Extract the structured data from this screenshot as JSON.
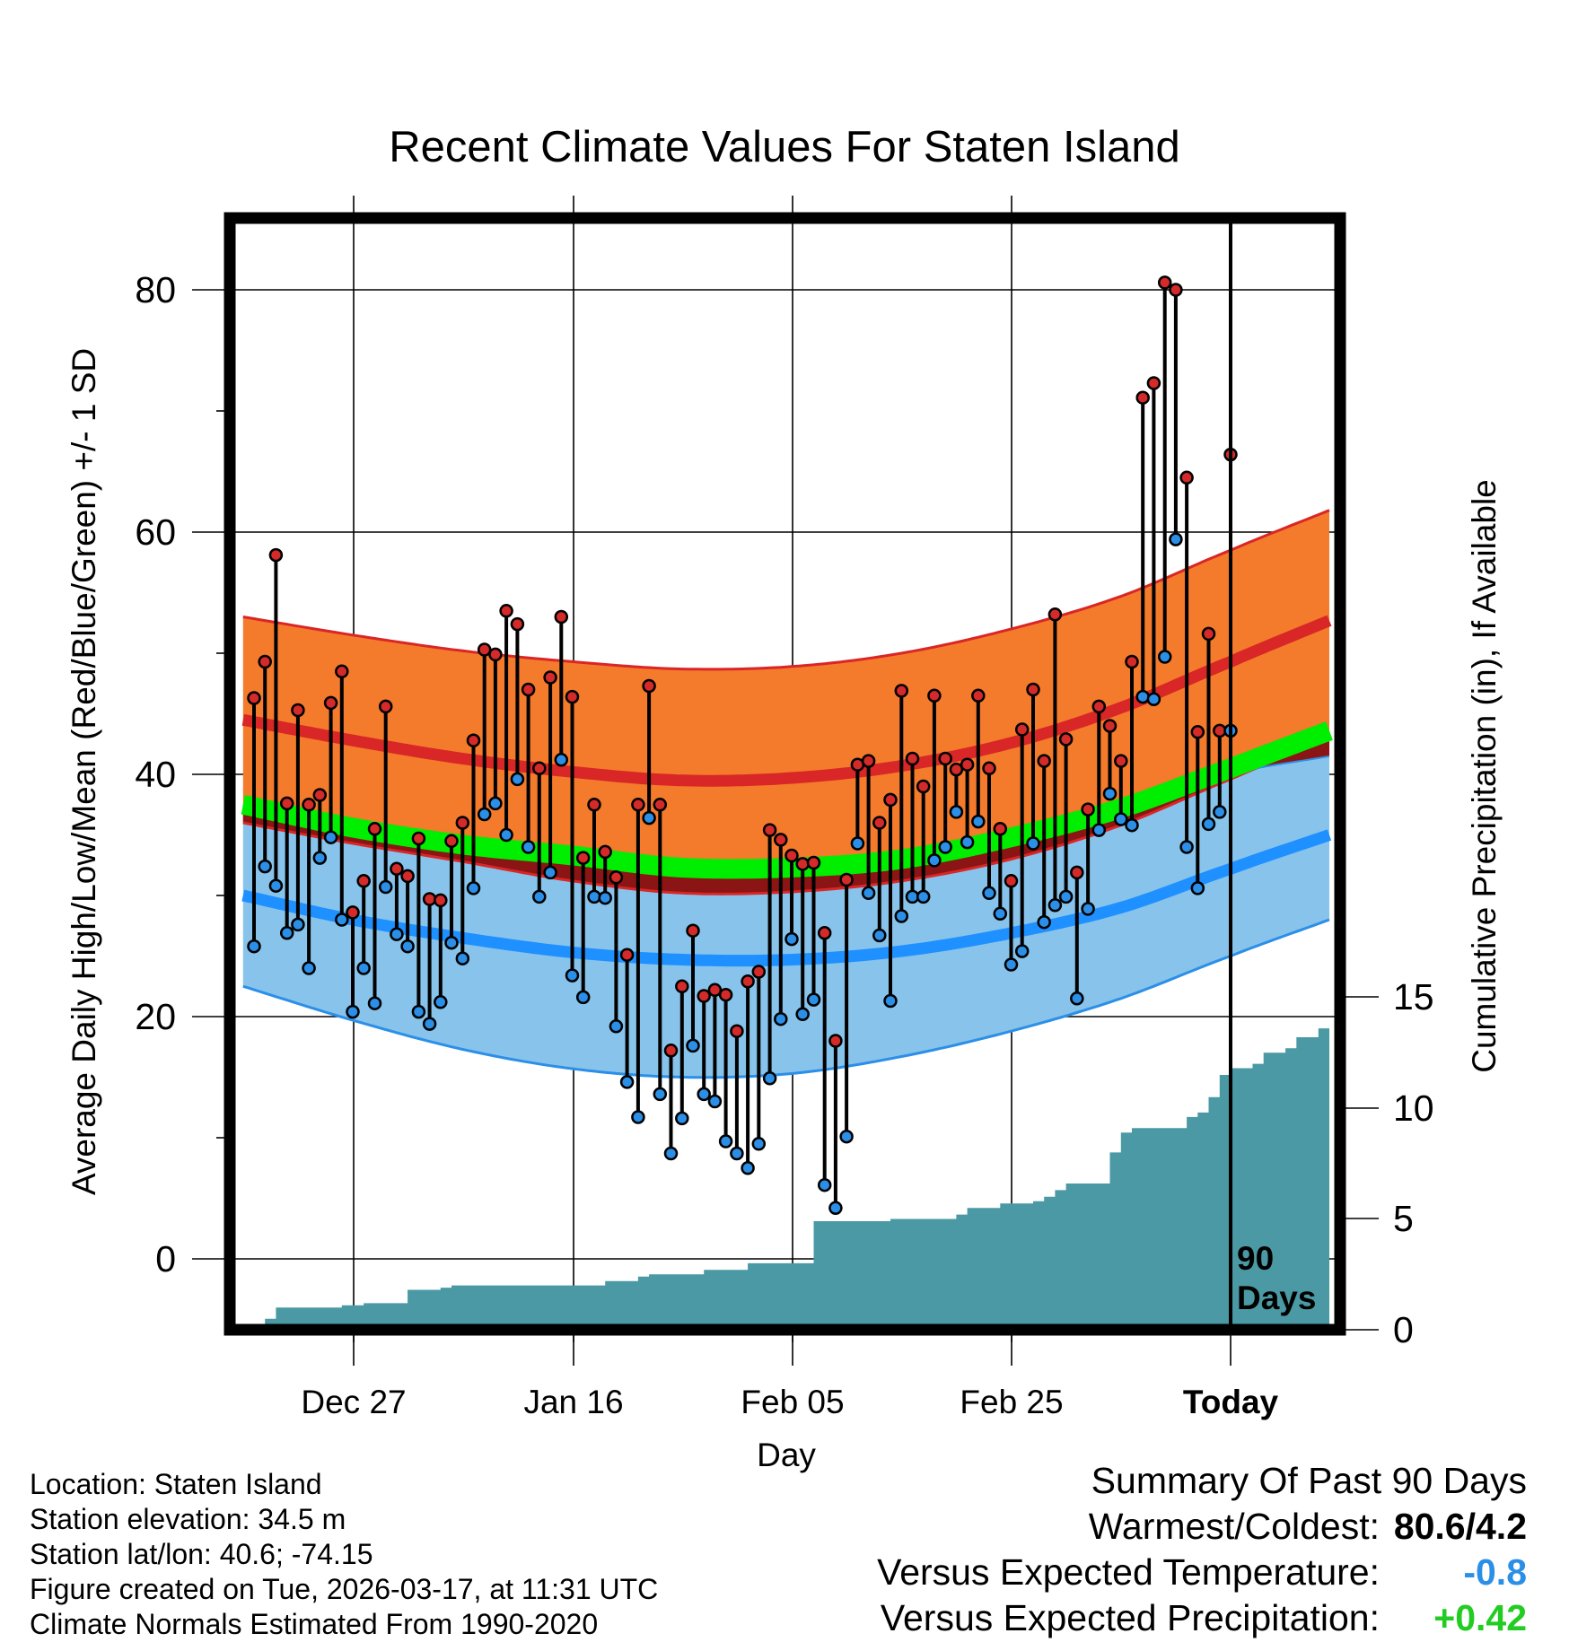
{
  "chart_data": {
    "type": "line",
    "title": "Recent Climate Values For Staten Island",
    "xlabel": "Day",
    "ylabel": "Average Daily High/Low/Mean (Red/Blue/Green) +/- 1 SD",
    "y2label": "Cumulative Precipitation (in), If Available",
    "ylim": [
      -5,
      86
    ],
    "y_ticks": [
      "0",
      "20",
      "40",
      "60",
      "80"
    ],
    "y2lim": [
      0,
      50
    ],
    "y2_ticks": [
      "0",
      "5",
      "10",
      "15"
    ],
    "x_range_days": [
      -90,
      9
    ],
    "x_ticks": [
      {
        "day": -70,
        "label": "Dec 27"
      },
      {
        "day": -50,
        "label": "Jan 16"
      },
      {
        "day": -30,
        "label": "Feb 05"
      },
      {
        "day": -10,
        "label": "Feb 25"
      },
      {
        "day": 0,
        "label": "Today"
      }
    ],
    "today_marker": {
      "day": 0,
      "label_line1": "90",
      "label_line2": "Days"
    },
    "normals": {
      "day": [
        -90,
        -80,
        -70,
        -60,
        -50,
        -40,
        -30,
        -20,
        -10,
        0,
        9
      ],
      "normal_high": [
        44.5,
        42.8,
        41.3,
        40.2,
        39.5,
        39.7,
        40.7,
        42.6,
        45.5,
        49.3,
        52.7
      ],
      "normal_high_upper": [
        53.0,
        51.5,
        50.2,
        49.3,
        48.7,
        48.9,
        50.0,
        52.0,
        54.7,
        58.5,
        61.8
      ],
      "normal_high_lower": [
        36.0,
        34.3,
        32.8,
        31.2,
        30.2,
        30.3,
        31.2,
        33.0,
        35.8,
        39.6,
        43.0
      ],
      "normal_mean": [
        37.5,
        35.6,
        34.2,
        33.3,
        32.3,
        32.3,
        33.0,
        34.8,
        37.2,
        40.5,
        43.6
      ],
      "normal_low": [
        30.0,
        28.0,
        26.5,
        25.3,
        24.7,
        24.7,
        25.4,
        26.9,
        29.0,
        32.2,
        35.0
      ],
      "normal_low_upper": [
        37.5,
        35.6,
        34.2,
        33.2,
        32.6,
        32.6,
        33.4,
        34.8,
        37.0,
        40.0,
        41.5
      ],
      "normal_low_lower": [
        22.5,
        19.7,
        17.3,
        15.7,
        15.0,
        15.3,
        16.7,
        18.8,
        21.5,
        25.0,
        28.0
      ]
    },
    "series": [
      {
        "name": "Daily High",
        "color": "#d42a2a",
        "values": [
          46.3,
          49.3,
          58.1,
          37.6,
          45.3,
          37.5,
          38.3,
          45.9,
          48.5,
          28.6,
          31.2,
          35.5,
          45.6,
          32.2,
          31.6,
          34.7,
          29.7,
          29.6,
          34.5,
          36.0,
          42.8,
          50.3,
          49.9,
          53.5,
          52.4,
          47.0,
          40.5,
          48.0,
          53.0,
          46.4,
          33.1,
          37.5,
          33.6,
          31.5,
          25.1,
          37.5,
          47.3,
          37.5,
          17.2,
          22.5,
          27.1,
          21.7,
          22.2,
          21.8,
          18.8,
          22.9,
          23.7,
          35.4,
          34.6,
          33.3,
          32.6,
          32.7,
          26.9,
          18.0,
          31.3,
          40.8,
          41.1,
          36.0,
          37.9,
          46.9,
          41.3,
          39.0,
          46.5,
          41.3,
          40.4,
          40.8,
          46.5,
          40.5,
          35.5,
          31.2,
          43.7,
          47.0,
          41.1,
          53.2,
          42.9,
          31.9,
          37.1,
          45.6,
          44.0,
          41.1,
          49.3,
          71.1,
          72.3,
          80.6,
          80.0,
          64.5,
          43.5,
          51.6,
          43.6,
          66.4
        ]
      },
      {
        "name": "Daily Low",
        "color": "#2b8fe8",
        "values": [
          25.8,
          32.4,
          30.8,
          26.9,
          27.6,
          24.0,
          33.1,
          34.8,
          28.0,
          20.4,
          24.0,
          21.1,
          30.7,
          26.8,
          25.8,
          20.4,
          19.4,
          21.2,
          26.1,
          24.8,
          30.6,
          36.7,
          37.6,
          35.0,
          39.6,
          34.0,
          29.9,
          31.9,
          41.2,
          23.4,
          21.6,
          29.9,
          29.8,
          19.2,
          14.6,
          11.7,
          36.4,
          13.6,
          8.7,
          11.6,
          17.6,
          13.6,
          13.0,
          9.7,
          8.7,
          7.5,
          9.5,
          14.9,
          19.8,
          26.4,
          20.2,
          21.4,
          6.1,
          4.2,
          10.1,
          34.3,
          30.2,
          26.7,
          21.3,
          28.3,
          29.9,
          29.9,
          32.9,
          34.0,
          36.9,
          34.4,
          36.1,
          30.2,
          28.5,
          24.3,
          25.4,
          34.3,
          27.8,
          29.2,
          29.9,
          21.5,
          28.9,
          35.4,
          38.4,
          36.3,
          35.8,
          46.4,
          46.2,
          49.7,
          59.4,
          34.0,
          30.6,
          35.9,
          36.9,
          43.6
        ]
      }
    ],
    "precip": {
      "day": [
        -88,
        -87,
        -84,
        -83,
        -81,
        -80,
        -79,
        -78,
        -76,
        -75,
        -72,
        -71,
        -69,
        -68,
        -66,
        -65,
        -64,
        -58,
        -57,
        -54,
        -53,
        -49,
        -48,
        -45,
        -44,
        -39,
        -38,
        -37,
        -36,
        -32,
        -31,
        -30,
        -26,
        -25,
        -24,
        -21,
        -20,
        -18,
        -17,
        -16,
        -15,
        -12,
        -11,
        -10,
        -9,
        -8,
        -4,
        -3,
        -2,
        -1,
        0,
        1,
        2,
        3,
        5,
        6,
        8,
        9
      ],
      "cumulative": [
        0.5,
        1.0,
        1.0,
        1.0,
        1.1,
        1.1,
        1.2,
        1.2,
        1.2,
        1.8,
        1.9,
        2.0,
        2.0,
        2.0,
        2.0,
        2.0,
        2.0,
        2.0,
        2.2,
        2.4,
        2.5,
        2.5,
        2.7,
        2.7,
        3.0,
        3.0,
        4.9,
        4.9,
        4.9,
        4.9,
        5.0,
        5.0,
        5.0,
        5.2,
        5.5,
        5.7,
        5.7,
        5.8,
        6.0,
        6.3,
        6.6,
        6.6,
        8.0,
        8.9,
        9.1,
        9.1,
        9.6,
        9.8,
        10.5,
        11.5,
        11.8,
        11.8,
        12.0,
        12.5,
        12.7,
        13.2,
        13.6,
        13.6
      ]
    }
  },
  "axis_labels": {
    "title": "Recent Climate Values For Staten Island",
    "xlabel": "Day",
    "ylabel": "Average Daily High/Low/Mean (Red/Blue/Green) +/- 1 SD",
    "y2label": "Cumulative Precipitation (in), If Available"
  },
  "colors": {
    "high_band": "#f47a2c",
    "high_band_edge": "#d92626",
    "high_normal": "#d92626",
    "low_band": "#87c3ea",
    "low_band_edge": "#2b8fe8",
    "low_normal": "#1e90ff",
    "mean_normal": "#00ee00",
    "overlap": "#8b1414",
    "precip": "#4a99a4",
    "high_dot": "#d42a2a",
    "low_dot": "#2b8fe8"
  },
  "info": {
    "location": "Location: Staten Island",
    "elevation": "Station elevation: 34.5 m",
    "latlon": "Station lat/lon: 40.6; -74.15",
    "created": "Figure created on Tue, 2026-03-17, at 11:31 UTC",
    "normals": "Climate Normals Estimated From 1990-2020"
  },
  "summary": {
    "heading": "Summary Of Past 90 Days",
    "warmest_coldest_label": "Warmest/Coldest:",
    "warmest_coldest_value": "80.6/4.2",
    "temp_label": "Versus Expected Temperature:",
    "temp_value": "-0.8",
    "temp_color": "#2b8fe8",
    "precip_label": "Versus Expected Precipitation:",
    "precip_value": "+0.42",
    "precip_color": "#22cc22"
  }
}
